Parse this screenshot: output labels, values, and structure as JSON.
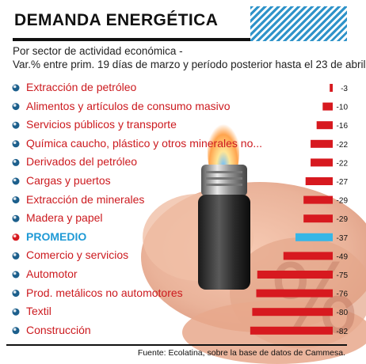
{
  "header": {
    "title": "DEMANDA ENERGÉTICA",
    "subtitle_line1": "Por sector de actividad económica -",
    "subtitle_line2": "Var.% entre prim. 19 días de marzo y período posterior hasta el 23 de abril"
  },
  "footer": {
    "source": "Fuente: Ecolatina, sobre la base de datos de Cammesa."
  },
  "colors": {
    "bar": "#d7191f",
    "average_bar": "#37b6e6",
    "label": "#cc1a1f",
    "average_label": "#1f9ad6",
    "stripes": "#2f93c9"
  },
  "chart_data": {
    "type": "bar",
    "orientation": "horizontal",
    "categories": [
      "Extracción de petróleo",
      "Alimentos y artículos de consumo masivo",
      "Servicios públicos y transporte",
      "Química caucho, plástico y otros minerales no...",
      "Derivados del petróleo",
      "Cargas y puertos",
      "Extracción de minerales",
      "Madera y papel",
      "PROMEDIO",
      "Comercio y servicios",
      "Automotor",
      "Prod. metálicos no automotores",
      "Textil",
      "Construcción"
    ],
    "values": [
      -3,
      -10,
      -16,
      -22,
      -22,
      -27,
      -29,
      -29,
      -37,
      -49,
      -75,
      -76,
      -80,
      -82
    ],
    "value_labels": [
      "-3",
      "-10",
      "-16",
      "-22",
      "-22",
      "-27",
      "-29",
      "-29",
      "-37",
      "-49",
      "-75",
      "-76",
      "-80",
      "-82"
    ],
    "highlight_category": "PROMEDIO",
    "xlim": [
      -82,
      0
    ],
    "grid": false,
    "legend": "none"
  }
}
